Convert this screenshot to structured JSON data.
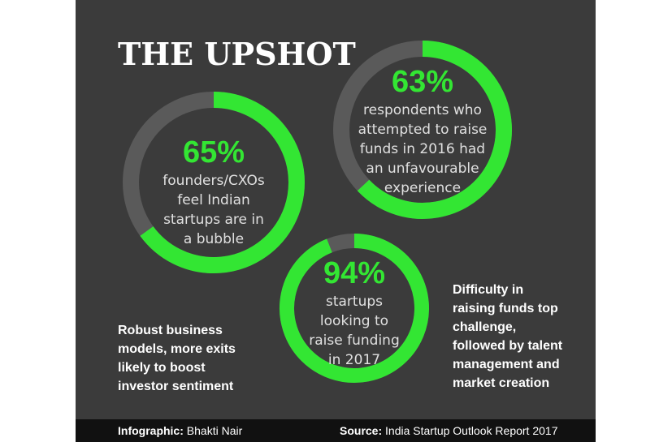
{
  "title": "THE UPSHOT",
  "chart_data": [
    {
      "type": "donut",
      "values": [
        65
      ],
      "value_labels": [
        "65%"
      ],
      "color": "#33e633",
      "track": "#5a5a5a",
      "caption": [
        "founders/CXOs",
        "feel Indian",
        "startups are in",
        "a bubble"
      ]
    },
    {
      "type": "donut",
      "values": [
        63
      ],
      "value_labels": [
        "63%"
      ],
      "color": "#33e633",
      "track": "#5a5a5a",
      "caption": [
        "respondents who",
        "attempted to raise",
        "funds in 2016 had",
        "an unfavourable",
        "experience"
      ]
    },
    {
      "type": "donut",
      "values": [
        94
      ],
      "value_labels": [
        "94%"
      ],
      "color": "#33e633",
      "track": "#5a5a5a",
      "caption": [
        "startups",
        "looking to",
        "raise funding",
        "in 2017"
      ]
    }
  ],
  "notes": [
    [
      "Robust business",
      "models, more exits",
      "likely to boost",
      "investor sentiment"
    ],
    [
      "Difficulty in",
      "raising funds top",
      "challenge,",
      "followed by talent",
      "management and",
      "market creation"
    ]
  ],
  "footer": {
    "credit_label": "Infographic:",
    "credit": "Bhakti Nair",
    "source_label": "Source:",
    "source": "India Startup Outlook Report 2017"
  }
}
